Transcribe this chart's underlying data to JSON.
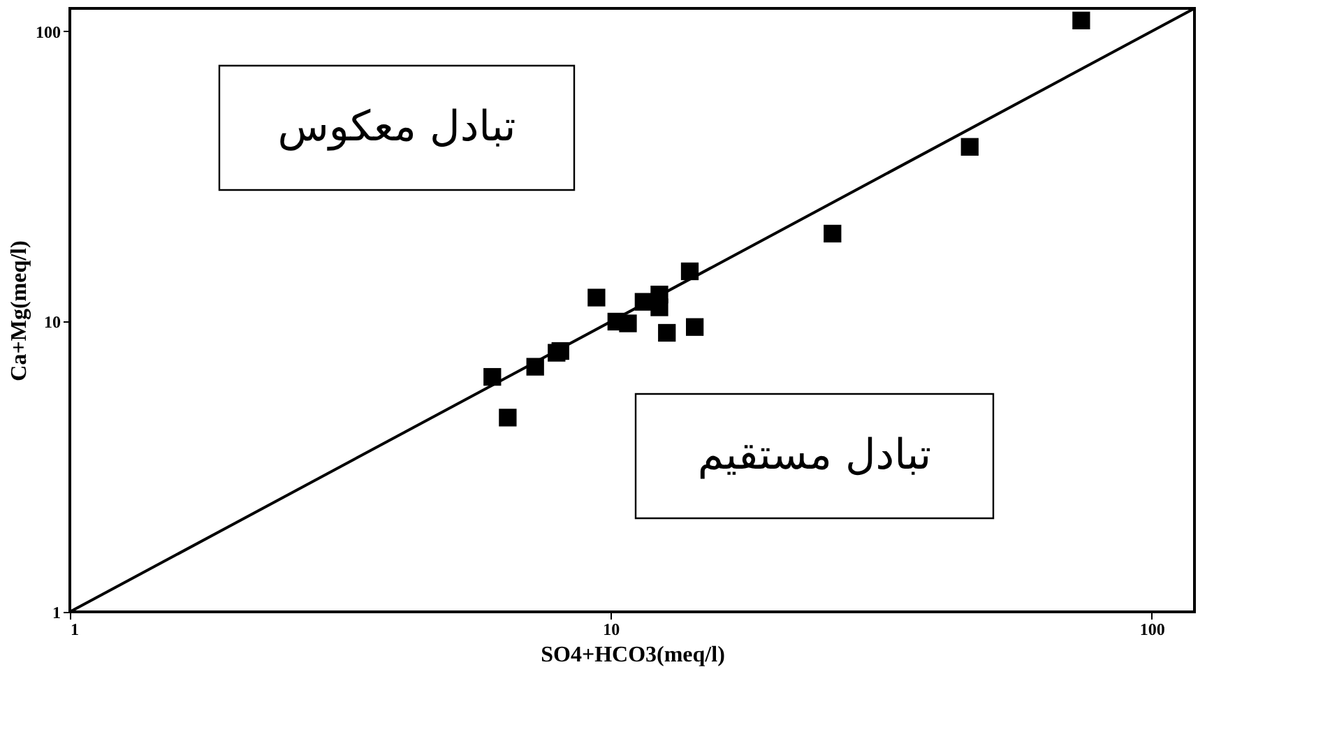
{
  "chart_data": {
    "type": "scatter",
    "xlabel": "SO4+HCO3(meq/l)",
    "ylabel": "Ca+Mg(meq/l)",
    "log": "xy",
    "xlim": [
      1,
      120
    ],
    "ylim": [
      1,
      120
    ],
    "xticks": [
      1,
      10,
      100
    ],
    "yticks": [
      1,
      10,
      100
    ],
    "grid": false,
    "series": [
      {
        "type": "scatter",
        "marker": "square",
        "color": "#000000",
        "x": [
          6.04,
          6.45,
          7.25,
          7.94,
          8.07,
          9.41,
          10.24,
          10.76,
          11.5,
          12.3,
          12.3,
          12.7,
          14.0,
          14.3,
          25.7,
          46.1,
          74.1
        ],
        "values": [
          6.45,
          4.67,
          6.99,
          7.81,
          7.92,
          12.1,
          10.0,
          9.86,
          11.7,
          12.4,
          11.2,
          9.15,
          14.9,
          9.58,
          20.1,
          40.0,
          109
        ]
      },
      {
        "type": "line",
        "color": "#000000",
        "line_style": "solid",
        "marker": "none",
        "x": [
          1,
          120
        ],
        "values": [
          1,
          120
        ]
      }
    ],
    "annotations": [
      "تبادل معکوس",
      "تبادل مستقیم"
    ]
  }
}
